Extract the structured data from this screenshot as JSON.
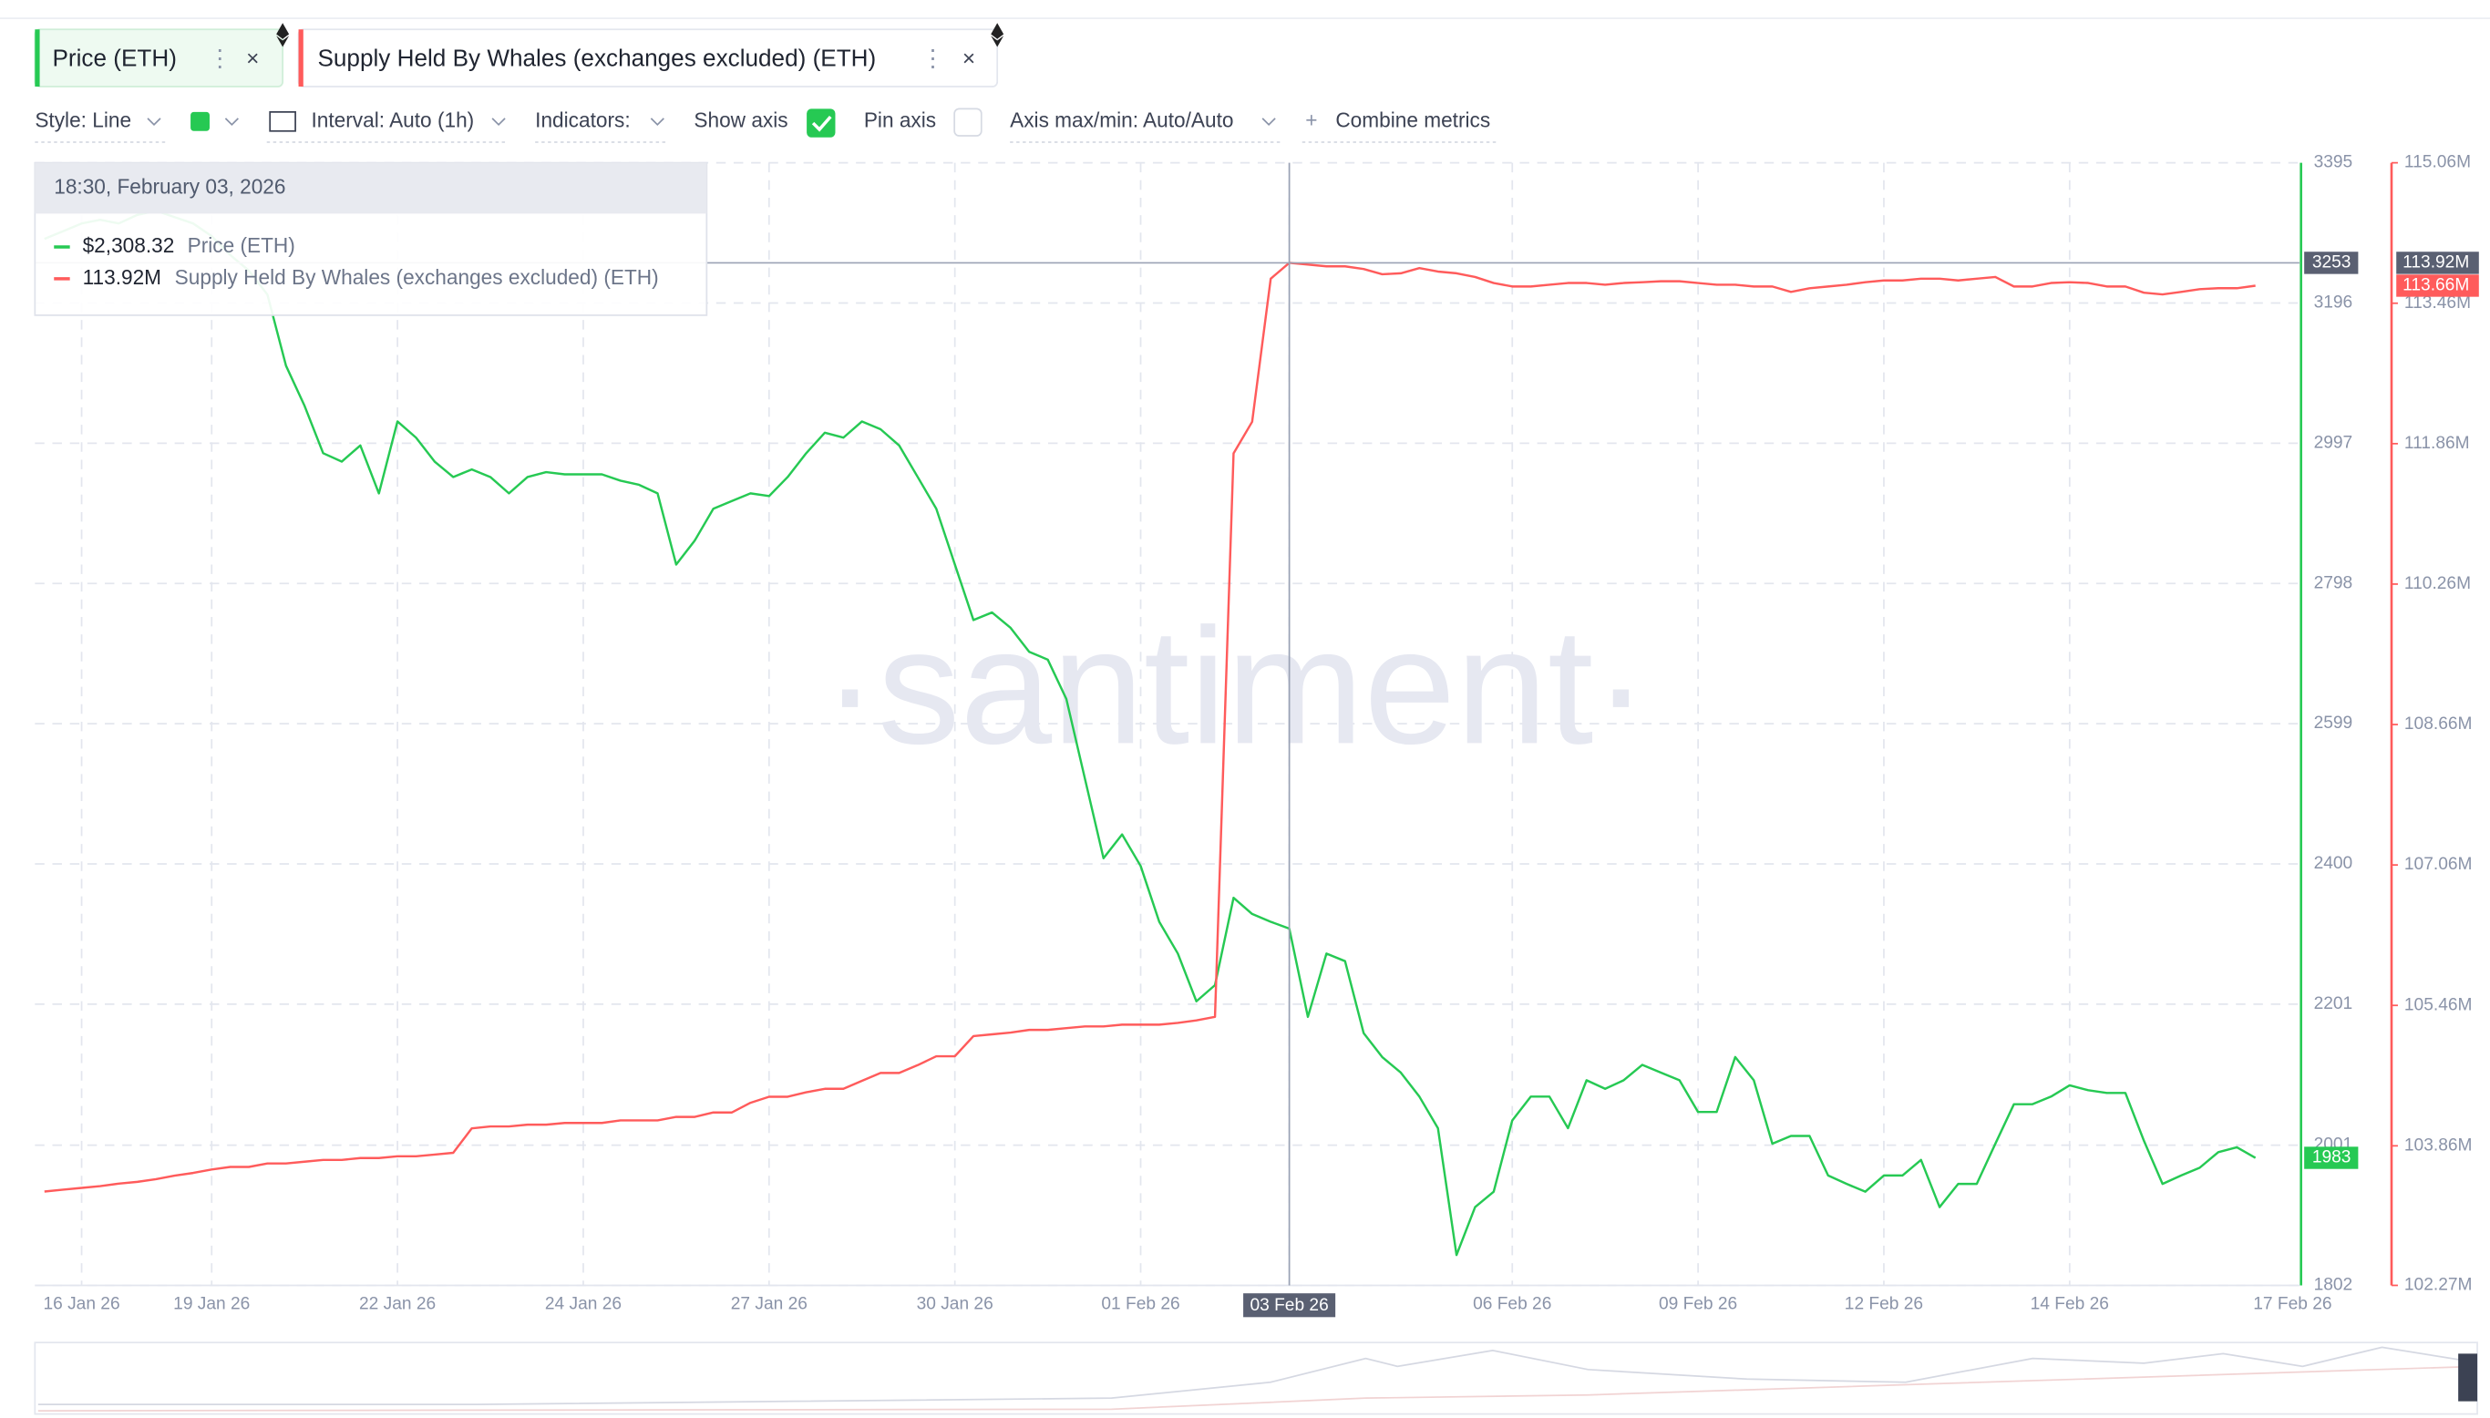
{
  "toolbar": {
    "style": "Style: Line",
    "interval": "Interval: Auto (1h)",
    "indicators": "Indicators:",
    "show_axis": "Show axis",
    "pin_axis": "Pin axis",
    "axis_range": "Axis max/min: Auto/Auto",
    "combine": "Combine metrics"
  },
  "watermark": "·santiment·",
  "chart_data": {
    "type": "line",
    "grid": true,
    "categories": [
      null,
      null,
      "16 Jan 26",
      null,
      null,
      null,
      null,
      null,
      null,
      "19 Jan 26",
      null,
      null,
      null,
      null,
      null,
      null,
      null,
      null,
      null,
      "22 Jan 26",
      null,
      null,
      null,
      null,
      null,
      null,
      null,
      null,
      null,
      "24 Jan 26",
      null,
      null,
      null,
      null,
      null,
      null,
      null,
      null,
      null,
      "27 Jan 26",
      null,
      null,
      null,
      null,
      null,
      null,
      null,
      null,
      null,
      "30 Jan 26",
      null,
      null,
      null,
      null,
      null,
      null,
      null,
      null,
      null,
      "01 Feb 26",
      null,
      null,
      null,
      null,
      null,
      null,
      null,
      "03 Feb 26",
      null,
      null,
      null,
      null,
      null,
      null,
      null,
      null,
      null,
      null,
      null,
      "06 Feb 26",
      null,
      null,
      null,
      null,
      null,
      null,
      null,
      null,
      null,
      "09 Feb 26",
      null,
      null,
      null,
      null,
      null,
      null,
      null,
      null,
      null,
      "12 Feb 26",
      null,
      null,
      null,
      null,
      null,
      null,
      null,
      null,
      null,
      "14 Feb 26",
      null,
      null,
      null,
      null,
      null,
      null,
      null,
      null,
      null,
      null,
      null,
      "17 Feb 26"
    ],
    "ylim": [
      1802,
      3395
    ],
    "yticks": [
      1802,
      2001,
      2201,
      2400,
      2599,
      2798,
      2997,
      3196,
      3395
    ],
    "y2lim": [
      102270000,
      115060000
    ],
    "y2ticks": [
      {
        "value": 102270000,
        "label": "102.27M"
      },
      {
        "value": 103860000,
        "label": "103.86M"
      },
      {
        "value": 105460000,
        "label": "105.46M"
      },
      {
        "value": 107060000,
        "label": "107.06M"
      },
      {
        "value": 108660000,
        "label": "108.66M"
      },
      {
        "value": 110260000,
        "label": "110.26M"
      },
      {
        "value": 111860000,
        "label": "111.86M"
      },
      {
        "value": 113460000,
        "label": "113.46M"
      },
      {
        "value": 115060000,
        "label": "115.06M"
      }
    ],
    "series": [
      {
        "name": "Price (ETH)",
        "color": "#26c953",
        "values": [
          3287,
          3298,
          3309,
          3314,
          3309,
          3321,
          3327,
          3318,
          3309,
          3291,
          3264,
          3242,
          3208,
          3107,
          3050,
          2983,
          2971,
          2994,
          2926,
          3028,
          3005,
          2971,
          2949,
          2960,
          2949,
          2926,
          2949,
          2956,
          2953,
          2953,
          2953,
          2944,
          2938,
          2926,
          2825,
          2859,
          2904,
          2915,
          2926,
          2922,
          2949,
          2983,
          3012,
          3005,
          3028,
          3017,
          2994,
          2949,
          2904,
          2825,
          2746,
          2757,
          2735,
          2701,
          2690,
          2634,
          2521,
          2408,
          2442,
          2397,
          2318,
          2273,
          2205,
          2228,
          2352,
          2329,
          2318,
          2308.32,
          2183,
          2273,
          2262,
          2160,
          2126,
          2104,
          2070,
          2025,
          1845,
          1913,
          1935,
          2036,
          2070,
          2070,
          2025,
          2093,
          2081,
          2093,
          2115,
          2104,
          2093,
          2048,
          2048,
          2126,
          2093,
          2003,
          2014,
          2014,
          1958,
          1946,
          1935,
          1958,
          1958,
          1980,
          1913,
          1946,
          1946,
          2003,
          2059,
          2059,
          2070,
          2086,
          2079,
          2075,
          2075,
          2007,
          1946,
          1958,
          1969,
          1991,
          1998,
          1983,
          null,
          null
        ]
      },
      {
        "name": "Supply Held By Whales (exchanges excluded) (ETH)",
        "color": "#ff5b5b",
        "axis": "y2",
        "last_label": "113.66M",
        "values": [
          103340000,
          103360000,
          103380000,
          103400000,
          103430000,
          103450000,
          103480000,
          103520000,
          103550000,
          103590000,
          103620000,
          103620000,
          103660000,
          103660000,
          103680000,
          103700000,
          103700000,
          103720000,
          103720000,
          103740000,
          103740000,
          103760000,
          103780000,
          104060000,
          104080000,
          104080000,
          104100000,
          104100000,
          104120000,
          104120000,
          104120000,
          104150000,
          104150000,
          104150000,
          104190000,
          104190000,
          104240000,
          104240000,
          104350000,
          104420000,
          104420000,
          104470000,
          104510000,
          104510000,
          104600000,
          104690000,
          104690000,
          104780000,
          104880000,
          104880000,
          105110000,
          105130000,
          105150000,
          105180000,
          105180000,
          105200000,
          105220000,
          105220000,
          105240000,
          105240000,
          105240000,
          105260000,
          105290000,
          105330000,
          111750000,
          112110000,
          113740000,
          113920000,
          113900000,
          113880000,
          113880000,
          113850000,
          113790000,
          113800000,
          113860000,
          113820000,
          113800000,
          113760000,
          113690000,
          113650000,
          113650000,
          113670000,
          113690000,
          113690000,
          113670000,
          113690000,
          113700000,
          113710000,
          113710000,
          113690000,
          113670000,
          113670000,
          113650000,
          113650000,
          113590000,
          113630000,
          113650000,
          113670000,
          113700000,
          113720000,
          113720000,
          113740000,
          113740000,
          113720000,
          113740000,
          113760000,
          113650000,
          113650000,
          113690000,
          113700000,
          113690000,
          113650000,
          113650000,
          113580000,
          113560000,
          113590000,
          113620000,
          113630000,
          113630000,
          113660000,
          null,
          null
        ]
      }
    ],
    "crosshair": {
      "x": "03 Feb 26",
      "y": 3253
    },
    "tooltip": {
      "title": "18:30, February 03, 2026",
      "labels": [
        "$2,308.32",
        "113.92M"
      ]
    }
  }
}
